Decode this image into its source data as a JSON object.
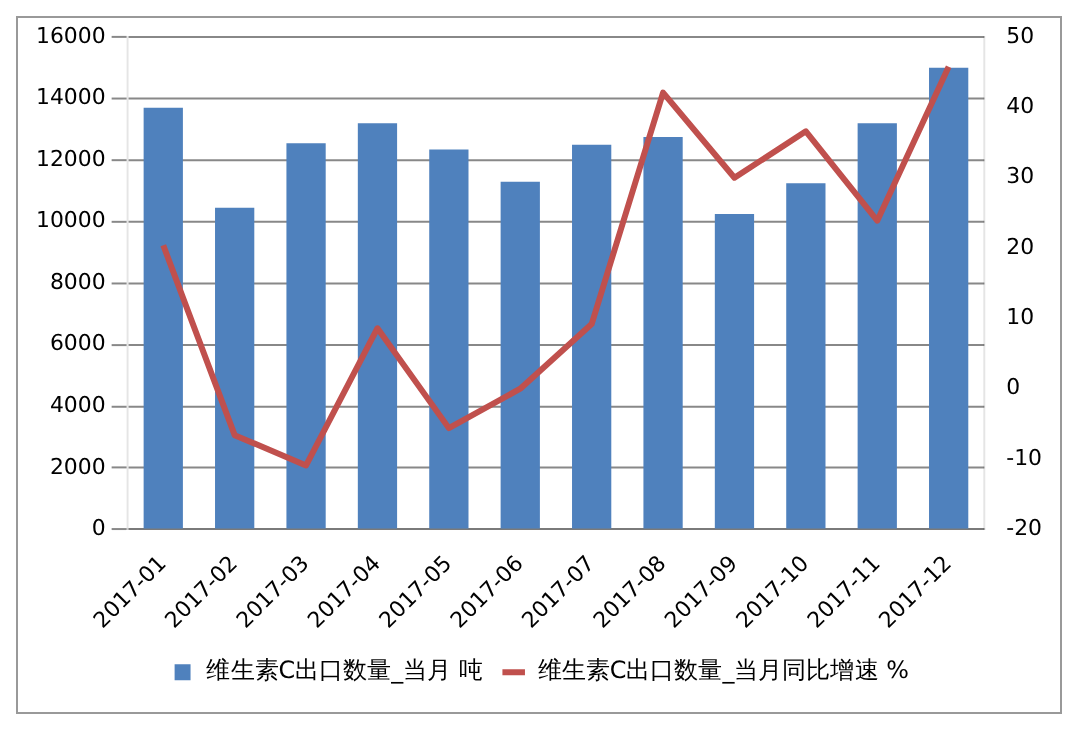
{
  "chart_data": {
    "type": "bar",
    "categories": [
      "2017-01",
      "2017-02",
      "2017-03",
      "2017-04",
      "2017-05",
      "2017-06",
      "2017-07",
      "2017-08",
      "2017-09",
      "2017-10",
      "2017-11",
      "2017-12"
    ],
    "series": [
      {
        "name": "维生素C出口数量_当月 吨",
        "color": "#4f81bd",
        "values": [
          13700,
          10450,
          12550,
          13200,
          12350,
          11300,
          12500,
          12750,
          10250,
          11250,
          13200,
          15000
        ]
      },
      {
        "name": "维生素C出口数量_当月同比增速 %",
        "type": "line",
        "axis": "y2",
        "color": "#c0504d",
        "values": [
          20.4,
          -6.6,
          -10.9,
          8.6,
          -5.6,
          0,
          9.2,
          42.1,
          30,
          36.6,
          23.9,
          45.8
        ]
      }
    ],
    "ylim": [
      0,
      16000
    ],
    "yticks": [
      0,
      2000,
      4000,
      6000,
      8000,
      10000,
      12000,
      14000,
      16000
    ],
    "y2lim": [
      -20,
      50
    ],
    "y2ticks": [
      -20,
      -10,
      0,
      10,
      20,
      30,
      40,
      50
    ],
    "grid": "y",
    "legend": "bottom",
    "marker": "none",
    "line_style": "solid"
  }
}
